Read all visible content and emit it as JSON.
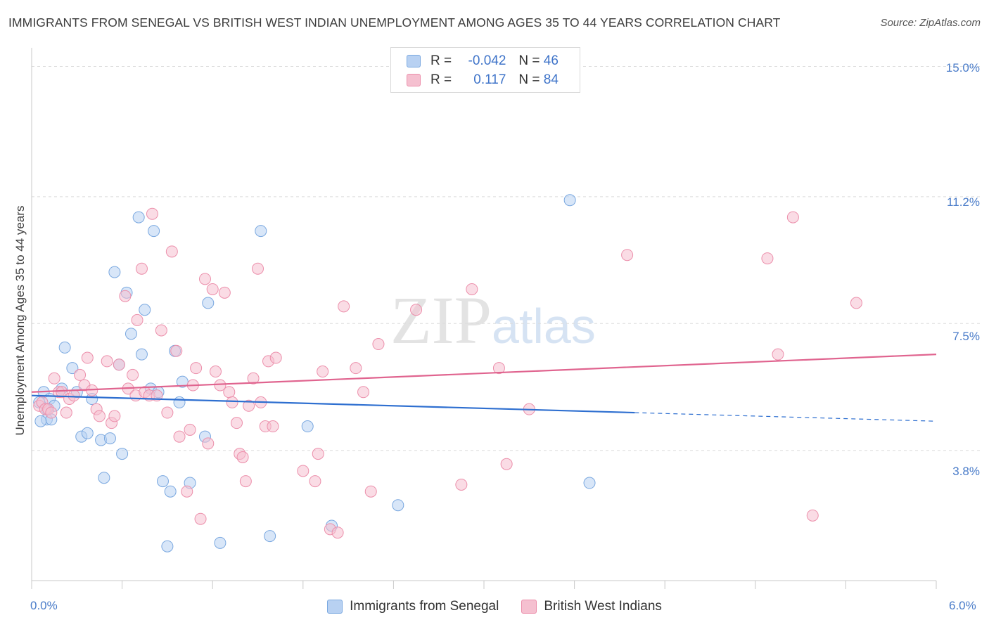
{
  "title": "IMMIGRANTS FROM SENEGAL VS BRITISH WEST INDIAN UNEMPLOYMENT AMONG AGES 35 TO 44 YEARS CORRELATION CHART",
  "source": "Source: ZipAtlas.com",
  "watermark": {
    "zip": "ZIP",
    "atlas": "atlas"
  },
  "colors": {
    "blue": "#7aa8e0",
    "blue_fill": "#b8d1f2",
    "blue_line": "#2e6fd0",
    "pink": "#ec8fab",
    "pink_fill": "#f5c0d0",
    "pink_line": "#e0648f",
    "tick_text": "#4a7cc9"
  },
  "legend": {
    "r_label": "R =",
    "n_label": "N =",
    "rows": [
      {
        "r": "-0.042",
        "n": "46"
      },
      {
        "r": "0.117",
        "n": "84"
      }
    ]
  },
  "chart_data": {
    "type": "scatter",
    "title": "IMMIGRANTS FROM SENEGAL VS BRITISH WEST INDIAN UNEMPLOYMENT AMONG AGES 35 TO 44 YEARS CORRELATION CHART",
    "xlabel": "",
    "ylabel": "Unemployment Among Ages 35 to 44 years",
    "xlim": [
      0,
      6
    ],
    "ylim": [
      0,
      15.4
    ],
    "x_tick_labels": [
      "0.0%",
      "6.0%"
    ],
    "y_ticks": [
      3.8,
      7.5,
      11.2,
      15.0
    ],
    "y_tick_labels": [
      "3.8%",
      "7.5%",
      "11.2%",
      "15.0%"
    ],
    "grid": "horizontal dashed",
    "legend_placement": "bottom",
    "series": [
      {
        "name": "Immigrants from Senegal",
        "trend": {
          "x0": 0.0,
          "y0": 5.4,
          "x1": 4.0,
          "y1": 4.9,
          "dashed_to_x": 6.0,
          "dashed_to_y": 4.65
        },
        "points": [
          [
            0.05,
            5.2
          ],
          [
            0.08,
            5.5
          ],
          [
            0.1,
            4.7
          ],
          [
            0.12,
            5.3
          ],
          [
            0.13,
            4.7
          ],
          [
            0.15,
            5.1
          ],
          [
            0.2,
            5.6
          ],
          [
            0.22,
            6.8
          ],
          [
            0.27,
            6.2
          ],
          [
            0.3,
            5.5
          ],
          [
            0.33,
            4.2
          ],
          [
            0.37,
            4.3
          ],
          [
            0.4,
            5.3
          ],
          [
            0.46,
            4.1
          ],
          [
            0.48,
            3.0
          ],
          [
            0.52,
            4.15
          ],
          [
            0.55,
            9.0
          ],
          [
            0.58,
            6.3
          ],
          [
            0.6,
            3.7
          ],
          [
            0.63,
            8.4
          ],
          [
            0.66,
            7.2
          ],
          [
            0.71,
            10.6
          ],
          [
            0.73,
            6.6
          ],
          [
            0.75,
            7.9
          ],
          [
            0.79,
            5.6
          ],
          [
            0.81,
            10.2
          ],
          [
            0.84,
            5.5
          ],
          [
            0.87,
            2.9
          ],
          [
            0.92,
            2.6
          ],
          [
            0.95,
            6.7
          ],
          [
            0.98,
            5.2
          ],
          [
            1.0,
            5.8
          ],
          [
            1.05,
            2.85
          ],
          [
            1.15,
            4.2
          ],
          [
            1.17,
            8.1
          ],
          [
            1.25,
            1.1
          ],
          [
            1.52,
            10.2
          ],
          [
            1.58,
            1.3
          ],
          [
            1.83,
            4.5
          ],
          [
            1.99,
            1.6
          ],
          [
            2.43,
            2.2
          ],
          [
            3.57,
            11.1
          ],
          [
            3.7,
            2.85
          ],
          [
            0.06,
            4.65
          ],
          [
            0.9,
            1.0
          ],
          [
            0.1,
            5.0
          ]
        ]
      },
      {
        "name": "British West Indians",
        "trend": {
          "x0": 0.0,
          "y0": 5.5,
          "x1": 6.0,
          "y1": 6.6
        },
        "points": [
          [
            0.05,
            5.1
          ],
          [
            0.07,
            5.2
          ],
          [
            0.09,
            5.0
          ],
          [
            0.11,
            5.0
          ],
          [
            0.13,
            4.9
          ],
          [
            0.15,
            5.9
          ],
          [
            0.18,
            5.5
          ],
          [
            0.2,
            5.5
          ],
          [
            0.23,
            4.9
          ],
          [
            0.25,
            5.3
          ],
          [
            0.28,
            5.4
          ],
          [
            0.32,
            6.0
          ],
          [
            0.35,
            5.7
          ],
          [
            0.37,
            6.5
          ],
          [
            0.4,
            5.55
          ],
          [
            0.43,
            5.0
          ],
          [
            0.45,
            4.8
          ],
          [
            0.5,
            6.4
          ],
          [
            0.53,
            4.6
          ],
          [
            0.55,
            4.8
          ],
          [
            0.58,
            6.3
          ],
          [
            0.62,
            8.3
          ],
          [
            0.64,
            5.6
          ],
          [
            0.67,
            6.0
          ],
          [
            0.69,
            5.4
          ],
          [
            0.7,
            7.6
          ],
          [
            0.73,
            9.1
          ],
          [
            0.75,
            5.5
          ],
          [
            0.78,
            5.4
          ],
          [
            0.8,
            10.7
          ],
          [
            0.83,
            5.4
          ],
          [
            0.86,
            7.3
          ],
          [
            0.9,
            4.9
          ],
          [
            0.93,
            9.6
          ],
          [
            0.96,
            6.7
          ],
          [
            0.98,
            4.2
          ],
          [
            1.03,
            2.6
          ],
          [
            1.05,
            4.4
          ],
          [
            1.07,
            5.7
          ],
          [
            1.09,
            6.2
          ],
          [
            1.12,
            1.8
          ],
          [
            1.15,
            8.8
          ],
          [
            1.17,
            4.0
          ],
          [
            1.2,
            8.5
          ],
          [
            1.22,
            6.1
          ],
          [
            1.25,
            5.7
          ],
          [
            1.28,
            8.4
          ],
          [
            1.31,
            5.5
          ],
          [
            1.33,
            5.2
          ],
          [
            1.36,
            4.6
          ],
          [
            1.38,
            3.7
          ],
          [
            1.4,
            3.6
          ],
          [
            1.42,
            2.9
          ],
          [
            1.44,
            5.1
          ],
          [
            1.47,
            5.9
          ],
          [
            1.5,
            9.1
          ],
          [
            1.52,
            5.2
          ],
          [
            1.55,
            4.5
          ],
          [
            1.57,
            6.4
          ],
          [
            1.6,
            4.5
          ],
          [
            1.62,
            6.5
          ],
          [
            1.8,
            3.2
          ],
          [
            1.88,
            2.9
          ],
          [
            1.9,
            3.7
          ],
          [
            1.93,
            6.1
          ],
          [
            1.98,
            1.5
          ],
          [
            2.03,
            1.4
          ],
          [
            2.07,
            8.0
          ],
          [
            2.15,
            6.2
          ],
          [
            2.2,
            5.5
          ],
          [
            2.25,
            2.6
          ],
          [
            2.3,
            6.9
          ],
          [
            2.55,
            7.9
          ],
          [
            2.85,
            2.8
          ],
          [
            2.92,
            8.5
          ],
          [
            3.1,
            6.2
          ],
          [
            3.15,
            3.4
          ],
          [
            3.3,
            5.0
          ],
          [
            3.95,
            9.5
          ],
          [
            4.88,
            9.4
          ],
          [
            4.95,
            6.6
          ],
          [
            5.05,
            10.6
          ],
          [
            5.18,
            1.9
          ],
          [
            5.47,
            8.1
          ]
        ]
      }
    ]
  }
}
